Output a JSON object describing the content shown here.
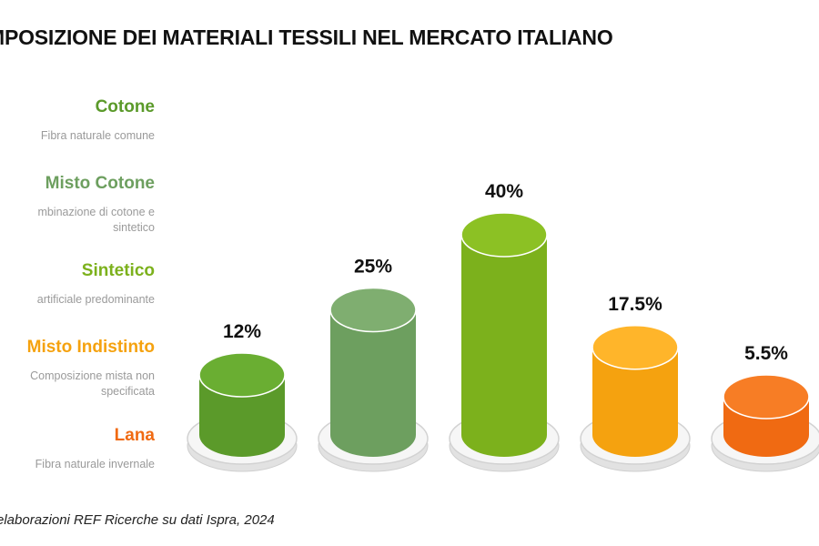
{
  "title": "MPOSIZIONE DEI MATERIALI TESSILI NEL MERCATO ITALIANO",
  "source": "elaborazioni REF Ricerche su dati Ispra, 2024",
  "legend": [
    {
      "name": "Cotone",
      "desc": "Fibra naturale comune",
      "color": "#5b9a2a"
    },
    {
      "name": "Misto Cotone",
      "desc": "mbinazione di cotone e sintetico",
      "color": "#6d9f5f"
    },
    {
      "name": "Sintetico",
      "desc": "artificiale predominante",
      "color": "#7cb11c"
    },
    {
      "name": "Misto Indistinto",
      "desc": "Composizione mista non specificata",
      "color": "#f5a20f"
    },
    {
      "name": "Lana",
      "desc": "Fibra naturale invernale",
      "color": "#f06a12"
    }
  ],
  "chart_data": {
    "type": "bar",
    "style": "3d-cylinder",
    "categories": [
      "Cotone",
      "Misto Cotone",
      "Sintetico",
      "Misto Indistinto",
      "Lana"
    ],
    "values": [
      12,
      25,
      40,
      17.5,
      5.5
    ],
    "value_labels": [
      "12%",
      "25%",
      "40%",
      "17.5%",
      "5.5%"
    ],
    "colors": {
      "body": [
        "#5b9a2a",
        "#6d9f5f",
        "#7cb11c",
        "#f5a20f",
        "#f06a12"
      ],
      "top": [
        "#6aae32",
        "#7fae70",
        "#8cc124",
        "#ffb52a",
        "#f77d25"
      ]
    },
    "unit": "%",
    "grid": false,
    "legend_position": "left"
  }
}
